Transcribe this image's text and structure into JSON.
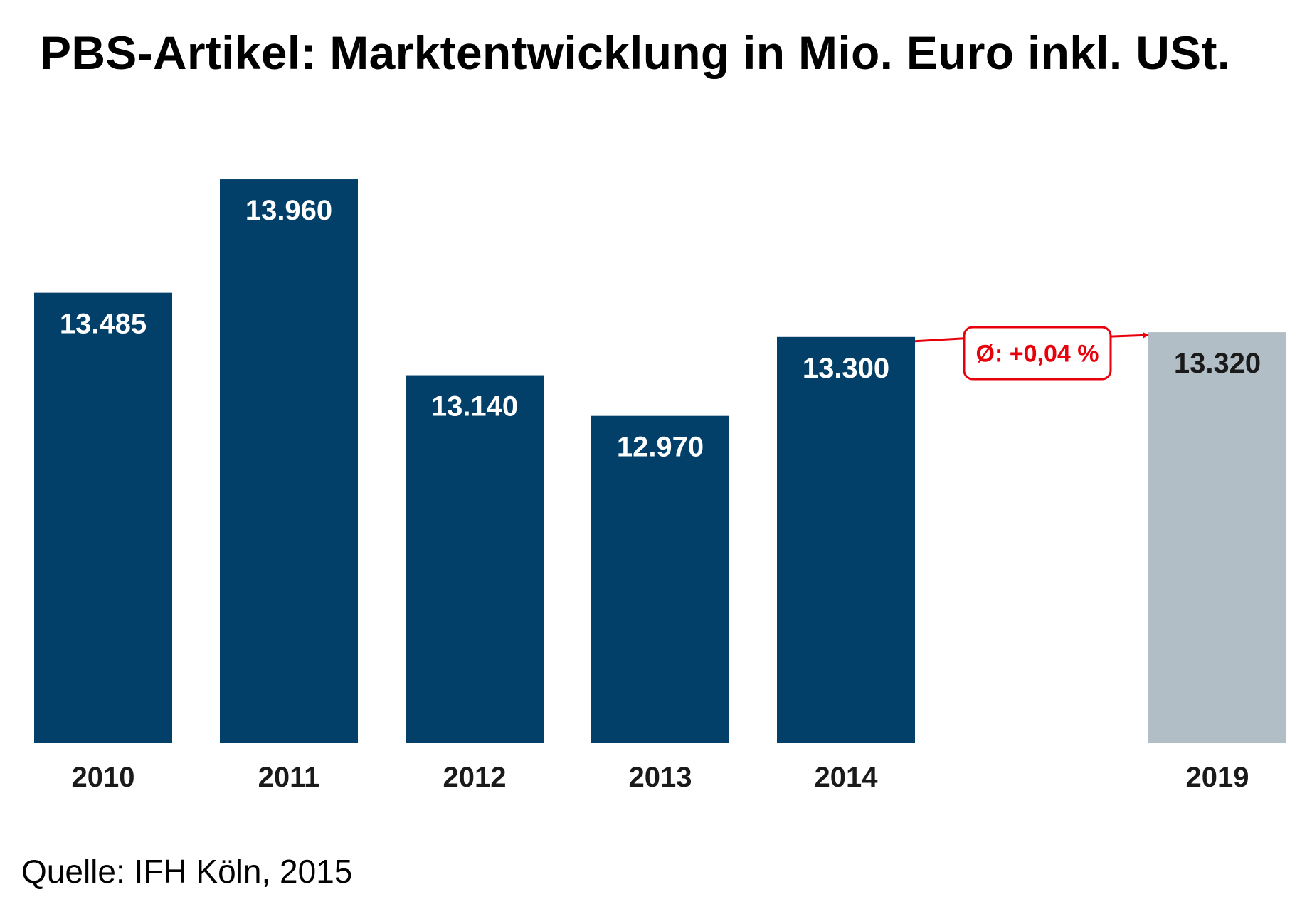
{
  "chart_data": {
    "type": "bar",
    "title": "PBS-Artikel: Marktentwicklung in Mio. Euro inkl. USt.",
    "categories": [
      "2010",
      "2011",
      "2012",
      "2013",
      "2014",
      "2019"
    ],
    "values": [
      13485,
      13960,
      13140,
      12970,
      13300,
      13320
    ],
    "value_labels": [
      "13.485",
      "13.960",
      "13.140",
      "12.970",
      "13.300",
      "13.320"
    ],
    "forecast": [
      false,
      false,
      false,
      false,
      false,
      true
    ],
    "annotation": {
      "text": "Ø: +0,04 %",
      "from": "2014",
      "to": "2019"
    },
    "xlabel": "",
    "ylabel": "",
    "ylim": [
      11600,
      14100
    ],
    "grid": false,
    "legend": "none",
    "source": "Quelle: IFH Köln, 2015",
    "colors": {
      "actual": "#02406a",
      "forecast": "#b2bec6",
      "actual_label": "#ffffff",
      "forecast_label": "#1a1a1a",
      "annotation": "#e8000b"
    }
  }
}
